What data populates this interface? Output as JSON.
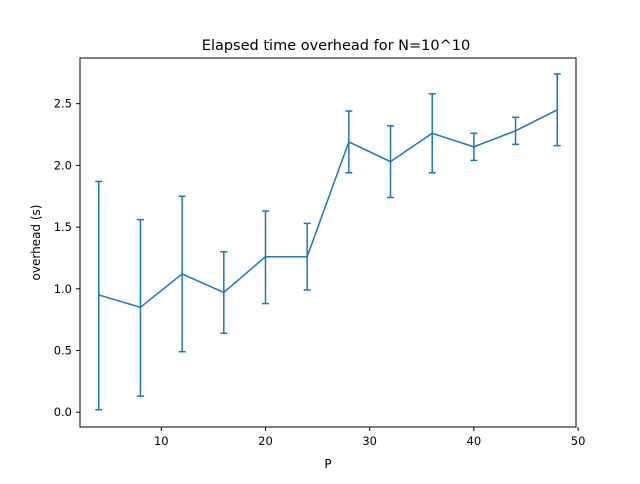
{
  "chart_data": {
    "type": "line",
    "title": "Elapsed time overhead for N=10^10",
    "xlabel": "P",
    "ylabel": "overhead (s)",
    "xlim": [
      2.2,
      49.8
    ],
    "ylim": [
      -0.12,
      2.87
    ],
    "x_ticks": [
      10,
      20,
      30,
      40,
      50
    ],
    "x_tick_labels": [
      "10",
      "20",
      "30",
      "40",
      "50"
    ],
    "y_ticks": [
      0.0,
      0.5,
      1.0,
      1.5,
      2.0,
      2.5
    ],
    "y_tick_labels": [
      "0.0",
      "0.5",
      "1.0",
      "1.5",
      "2.0",
      "2.5"
    ],
    "grid": false,
    "series": [
      {
        "color": "#1f77b4",
        "points": [
          {
            "x": 4,
            "y": 0.95,
            "err_low": 0.02,
            "err_high": 1.87
          },
          {
            "x": 8,
            "y": 0.85,
            "err_low": 0.13,
            "err_high": 1.56
          },
          {
            "x": 12,
            "y": 1.12,
            "err_low": 0.49,
            "err_high": 1.75
          },
          {
            "x": 16,
            "y": 0.97,
            "err_low": 0.64,
            "err_high": 1.3
          },
          {
            "x": 20,
            "y": 1.26,
            "err_low": 0.88,
            "err_high": 1.63
          },
          {
            "x": 24,
            "y": 1.26,
            "err_low": 0.99,
            "err_high": 1.53
          },
          {
            "x": 28,
            "y": 2.19,
            "err_low": 1.94,
            "err_high": 2.44
          },
          {
            "x": 32,
            "y": 2.03,
            "err_low": 1.74,
            "err_high": 2.32
          },
          {
            "x": 36,
            "y": 2.26,
            "err_low": 1.94,
            "err_high": 2.58
          },
          {
            "x": 40,
            "y": 2.15,
            "err_low": 2.04,
            "err_high": 2.26
          },
          {
            "x": 44,
            "y": 2.28,
            "err_low": 2.17,
            "err_high": 2.39
          },
          {
            "x": 48,
            "y": 2.45,
            "err_low": 2.16,
            "err_high": 2.74
          }
        ]
      }
    ]
  }
}
